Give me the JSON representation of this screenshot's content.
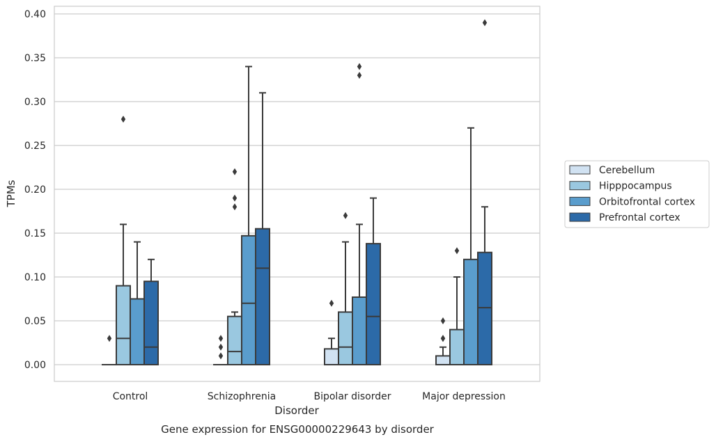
{
  "chart_data": {
    "type": "boxplot",
    "xlabel": "Disorder",
    "ylabel": "TPMs",
    "caption": "Gene expression for ENSG00000229643 by disorder",
    "ylim": [
      -0.019,
      0.41
    ],
    "yticks": [
      "0.00",
      "0.05",
      "0.10",
      "0.15",
      "0.20",
      "0.25",
      "0.30",
      "0.35",
      "0.40"
    ],
    "grid": true,
    "legend_placement": "right",
    "categories": [
      "Control",
      "Schizophrenia",
      "Bipolar disorder",
      "Major depression"
    ],
    "series": [
      {
        "name": "Cerebellum",
        "color": "#d1e2f2",
        "boxes": [
          {
            "q1": 0.0,
            "median": 0.0,
            "q3": 0.0,
            "whisker_low": 0.0,
            "whisker_high": 0.0,
            "outliers": [
              0.03
            ]
          },
          {
            "q1": 0.0,
            "median": 0.0,
            "q3": 0.0,
            "whisker_low": 0.0,
            "whisker_high": 0.0,
            "outliers": [
              0.01,
              0.02,
              0.03
            ]
          },
          {
            "q1": 0.0,
            "median": 0.0,
            "q3": 0.018,
            "whisker_low": 0.0,
            "whisker_high": 0.03,
            "outliers": [
              0.07
            ]
          },
          {
            "q1": 0.0,
            "median": 0.0,
            "q3": 0.01,
            "whisker_low": 0.0,
            "whisker_high": 0.02,
            "outliers": [
              0.03,
              0.03,
              0.05
            ]
          }
        ]
      },
      {
        "name": "Hipppocampus",
        "color": "#9ac8e0",
        "boxes": [
          {
            "q1": 0.0,
            "median": 0.03,
            "q3": 0.09,
            "whisker_low": 0.0,
            "whisker_high": 0.16,
            "outliers": [
              0.28
            ]
          },
          {
            "q1": 0.0,
            "median": 0.015,
            "q3": 0.055,
            "whisker_low": 0.0,
            "whisker_high": 0.06,
            "outliers": [
              0.18,
              0.19,
              0.22
            ]
          },
          {
            "q1": 0.0,
            "median": 0.02,
            "q3": 0.06,
            "whisker_low": 0.0,
            "whisker_high": 0.14,
            "outliers": [
              0.17
            ]
          },
          {
            "q1": 0.0,
            "median": 0.0,
            "q3": 0.04,
            "whisker_low": 0.0,
            "whisker_high": 0.1,
            "outliers": [
              0.13
            ]
          }
        ]
      },
      {
        "name": "Orbitofrontal cortex",
        "color": "#5a9dcd",
        "boxes": [
          {
            "q1": 0.0,
            "median": 0.0,
            "q3": 0.075,
            "whisker_low": 0.0,
            "whisker_high": 0.14,
            "outliers": []
          },
          {
            "q1": 0.0,
            "median": 0.07,
            "q3": 0.147,
            "whisker_low": 0.0,
            "whisker_high": 0.34,
            "outliers": []
          },
          {
            "q1": 0.0,
            "median": 0.0,
            "q3": 0.077,
            "whisker_low": 0.0,
            "whisker_high": 0.16,
            "outliers": [
              0.33,
              0.34
            ]
          },
          {
            "q1": 0.0,
            "median": 0.0,
            "q3": 0.12,
            "whisker_low": 0.0,
            "whisker_high": 0.27,
            "outliers": []
          }
        ]
      },
      {
        "name": "Prefrontal cortex",
        "color": "#2c6aa8",
        "boxes": [
          {
            "q1": 0.0,
            "median": 0.02,
            "q3": 0.095,
            "whisker_low": 0.0,
            "whisker_high": 0.12,
            "outliers": []
          },
          {
            "q1": 0.0,
            "median": 0.11,
            "q3": 0.155,
            "whisker_low": 0.0,
            "whisker_high": 0.31,
            "outliers": []
          },
          {
            "q1": 0.0,
            "median": 0.055,
            "q3": 0.138,
            "whisker_low": 0.0,
            "whisker_high": 0.19,
            "outliers": []
          },
          {
            "q1": 0.0,
            "median": 0.065,
            "q3": 0.128,
            "whisker_low": 0.0,
            "whisker_high": 0.18,
            "outliers": [
              0.39
            ]
          }
        ]
      }
    ]
  }
}
